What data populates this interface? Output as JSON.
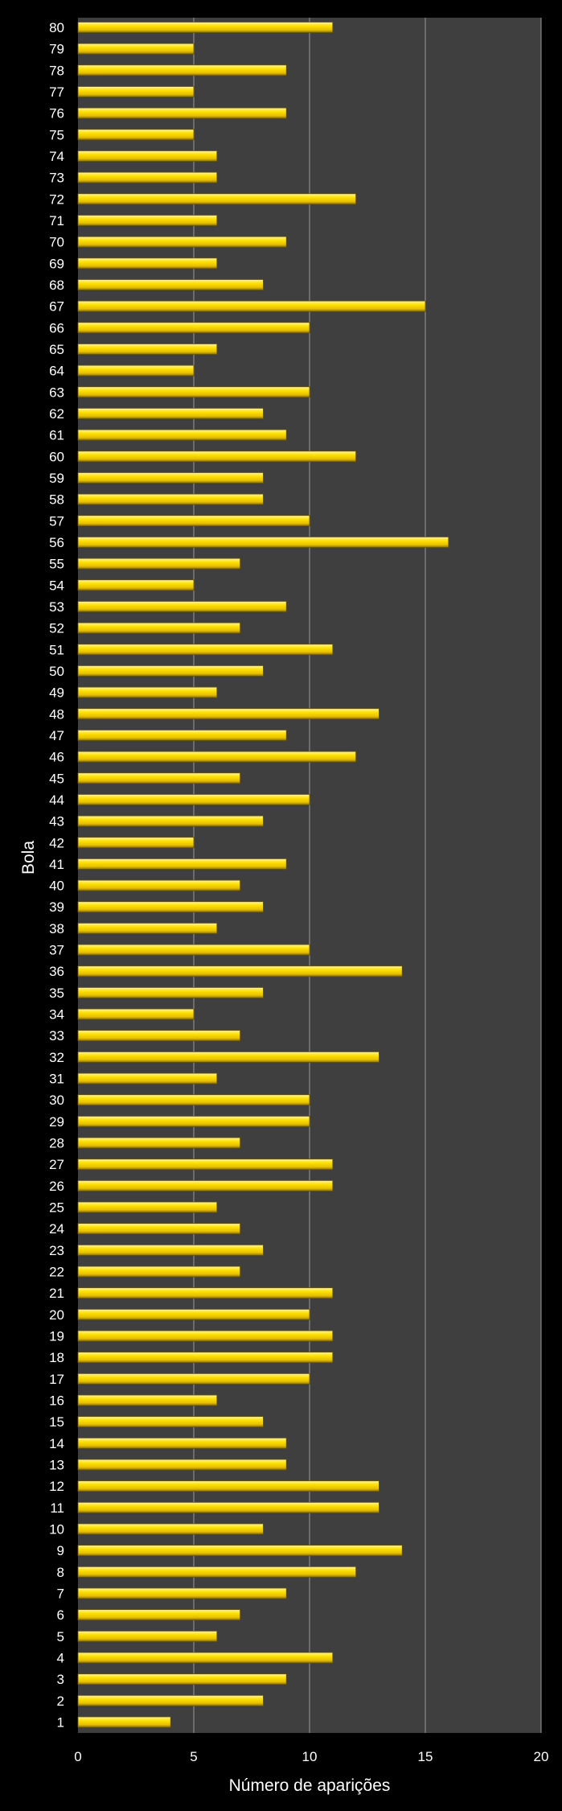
{
  "chart_data": {
    "type": "bar",
    "orientation": "horizontal",
    "title": "",
    "xlabel": "Número de aparições",
    "ylabel": "Bola",
    "xlim": [
      0,
      20
    ],
    "xticks": [
      0,
      5,
      10,
      15,
      20
    ],
    "grid": true,
    "legend": "none",
    "colors": {
      "background": "#000000",
      "plot_area": "#3f3f3f",
      "bar_fill": "#ffd700",
      "bar_highlight": "#fff8b0",
      "bar_shadow": "#a88a00",
      "gridline": "#9a9a9a",
      "text": "#ffffff"
    },
    "categories": [
      "1",
      "2",
      "3",
      "4",
      "5",
      "6",
      "7",
      "8",
      "9",
      "10",
      "11",
      "12",
      "13",
      "14",
      "15",
      "16",
      "17",
      "18",
      "19",
      "20",
      "21",
      "22",
      "23",
      "24",
      "25",
      "26",
      "27",
      "28",
      "29",
      "30",
      "31",
      "32",
      "33",
      "34",
      "35",
      "36",
      "37",
      "38",
      "39",
      "40",
      "41",
      "42",
      "43",
      "44",
      "45",
      "46",
      "47",
      "48",
      "49",
      "50",
      "51",
      "52",
      "53",
      "54",
      "55",
      "56",
      "57",
      "58",
      "59",
      "60",
      "61",
      "62",
      "63",
      "64",
      "65",
      "66",
      "67",
      "68",
      "69",
      "70",
      "71",
      "72",
      "73",
      "74",
      "75",
      "76",
      "77",
      "78",
      "79",
      "80"
    ],
    "values": [
      4,
      8,
      9,
      11,
      6,
      7,
      9,
      12,
      14,
      8,
      13,
      13,
      9,
      9,
      8,
      6,
      10,
      11,
      11,
      10,
      11,
      7,
      8,
      7,
      6,
      11,
      11,
      7,
      10,
      10,
      6,
      13,
      7,
      5,
      8,
      14,
      10,
      6,
      8,
      7,
      9,
      5,
      8,
      10,
      7,
      12,
      9,
      13,
      6,
      8,
      11,
      7,
      9,
      5,
      7,
      16,
      10,
      8,
      8,
      12,
      9,
      8,
      10,
      5,
      6,
      10,
      15,
      8,
      6,
      9,
      6,
      12,
      6,
      6,
      5,
      9,
      5,
      9,
      5,
      11
    ]
  }
}
